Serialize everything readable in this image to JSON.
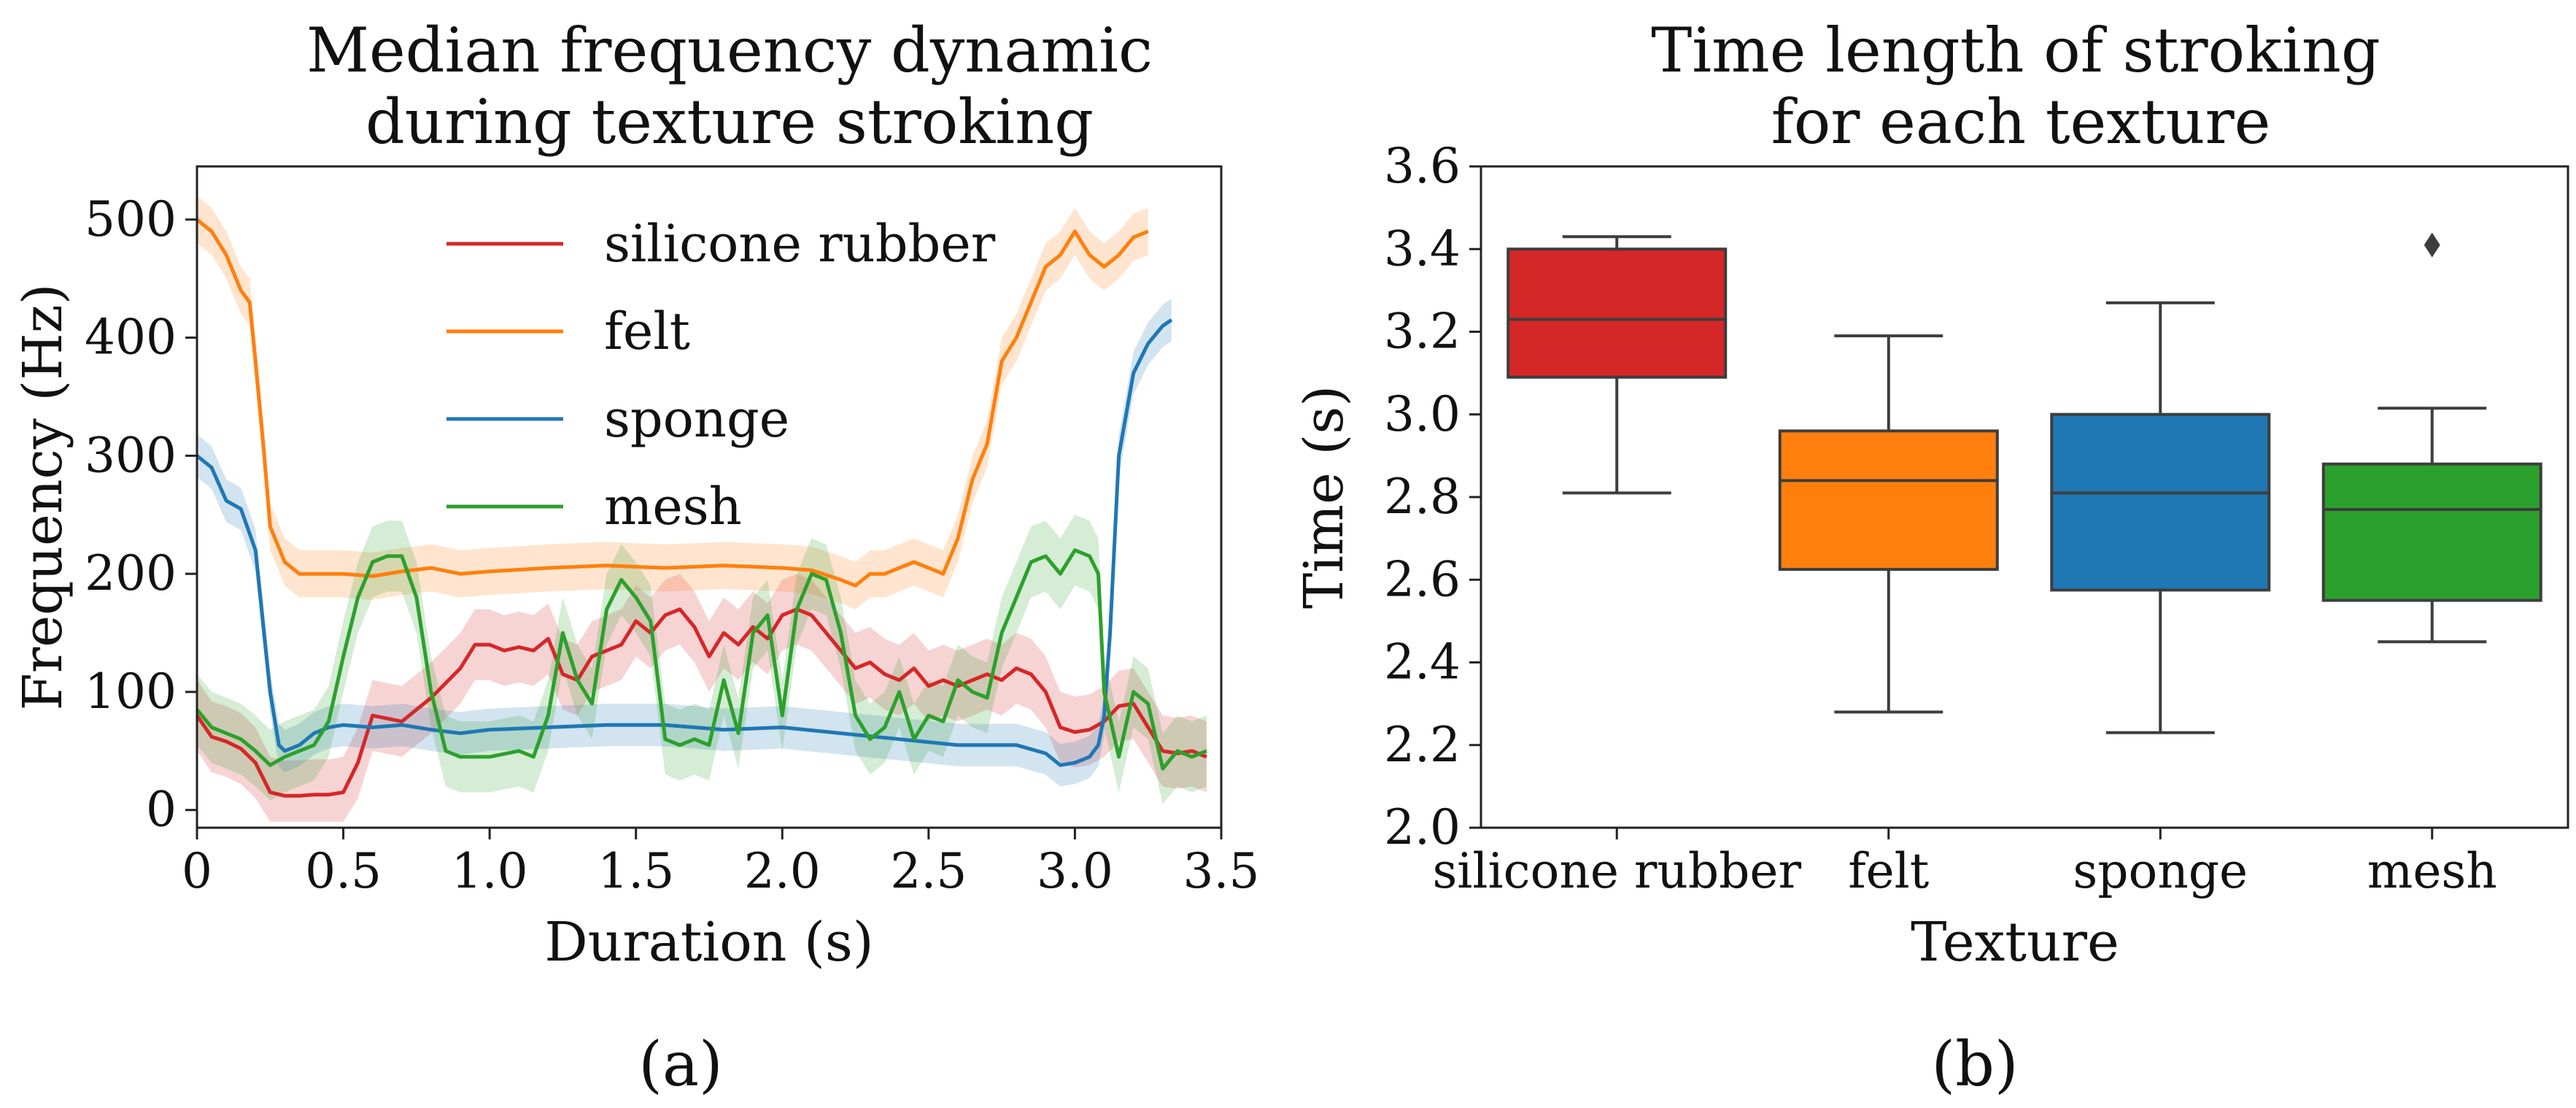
{
  "chart_data": [
    {
      "type": "line",
      "title_lines": [
        "Median frequency dynamic",
        "during texture stroking"
      ],
      "xlabel": "Duration (s)",
      "ylabel": "Frequency (Hz)",
      "xlim": [
        0,
        3.5
      ],
      "ylim": [
        -15,
        545
      ],
      "xticks": [
        "0",
        "0.5",
        "1.0",
        "1.5",
        "2.0",
        "2.5",
        "3.0",
        "3.5"
      ],
      "yticks": [
        "0",
        "100",
        "200",
        "300",
        "400",
        "500"
      ],
      "legend_position": "top-center",
      "caption": "(a)",
      "series": [
        {
          "name": "silicone rubber",
          "color": "#d62728",
          "band_spread": 30,
          "points": [
            [
              0,
              80
            ],
            [
              0.05,
              62
            ],
            [
              0.1,
              58
            ],
            [
              0.15,
              52
            ],
            [
              0.2,
              40
            ],
            [
              0.25,
              15
            ],
            [
              0.3,
              12
            ],
            [
              0.35,
              12
            ],
            [
              0.4,
              13
            ],
            [
              0.45,
              13
            ],
            [
              0.5,
              15
            ],
            [
              0.55,
              40
            ],
            [
              0.6,
              80
            ],
            [
              0.7,
              75
            ],
            [
              0.8,
              95
            ],
            [
              0.9,
              120
            ],
            [
              0.95,
              140
            ],
            [
              1.0,
              140
            ],
            [
              1.05,
              135
            ],
            [
              1.1,
              138
            ],
            [
              1.15,
              135
            ],
            [
              1.2,
              145
            ],
            [
              1.25,
              115
            ],
            [
              1.3,
              110
            ],
            [
              1.35,
              130
            ],
            [
              1.4,
              135
            ],
            [
              1.45,
              140
            ],
            [
              1.5,
              160
            ],
            [
              1.55,
              150
            ],
            [
              1.6,
              165
            ],
            [
              1.65,
              170
            ],
            [
              1.7,
              155
            ],
            [
              1.75,
              130
            ],
            [
              1.8,
              150
            ],
            [
              1.85,
              140
            ],
            [
              1.9,
              155
            ],
            [
              1.95,
              145
            ],
            [
              2.0,
              165
            ],
            [
              2.05,
              170
            ],
            [
              2.1,
              165
            ],
            [
              2.15,
              150
            ],
            [
              2.2,
              135
            ],
            [
              2.25,
              120
            ],
            [
              2.3,
              125
            ],
            [
              2.35,
              115
            ],
            [
              2.4,
              110
            ],
            [
              2.45,
              120
            ],
            [
              2.5,
              105
            ],
            [
              2.55,
              110
            ],
            [
              2.6,
              105
            ],
            [
              2.65,
              110
            ],
            [
              2.7,
              115
            ],
            [
              2.75,
              110
            ],
            [
              2.8,
              120
            ],
            [
              2.85,
              115
            ],
            [
              2.9,
              100
            ],
            [
              2.95,
              70
            ],
            [
              3.0,
              66
            ],
            [
              3.05,
              68
            ],
            [
              3.1,
              75
            ],
            [
              3.15,
              88
            ],
            [
              3.2,
              90
            ],
            [
              3.25,
              70
            ],
            [
              3.3,
              50
            ],
            [
              3.35,
              48
            ],
            [
              3.4,
              50
            ],
            [
              3.45,
              45
            ]
          ]
        },
        {
          "name": "felt",
          "color": "#ff7f0e",
          "band_spread": 20,
          "points": [
            [
              0,
              500
            ],
            [
              0.05,
              490
            ],
            [
              0.1,
              470
            ],
            [
              0.15,
              440
            ],
            [
              0.18,
              430
            ],
            [
              0.2,
              380
            ],
            [
              0.23,
              300
            ],
            [
              0.25,
              240
            ],
            [
              0.3,
              210
            ],
            [
              0.35,
              200
            ],
            [
              0.4,
              200
            ],
            [
              0.5,
              200
            ],
            [
              0.6,
              198
            ],
            [
              0.7,
              202
            ],
            [
              0.8,
              205
            ],
            [
              0.9,
              200
            ],
            [
              1.0,
              202
            ],
            [
              1.2,
              205
            ],
            [
              1.4,
              207
            ],
            [
              1.6,
              205
            ],
            [
              1.8,
              207
            ],
            [
              2.0,
              205
            ],
            [
              2.1,
              203
            ],
            [
              2.2,
              195
            ],
            [
              2.25,
              190
            ],
            [
              2.3,
              200
            ],
            [
              2.35,
              200
            ],
            [
              2.4,
              205
            ],
            [
              2.45,
              210
            ],
            [
              2.5,
              205
            ],
            [
              2.55,
              200
            ],
            [
              2.6,
              230
            ],
            [
              2.65,
              280
            ],
            [
              2.7,
              310
            ],
            [
              2.75,
              380
            ],
            [
              2.8,
              400
            ],
            [
              2.85,
              430
            ],
            [
              2.9,
              460
            ],
            [
              2.95,
              470
            ],
            [
              3.0,
              490
            ],
            [
              3.05,
              470
            ],
            [
              3.1,
              460
            ],
            [
              3.15,
              470
            ],
            [
              3.2,
              485
            ],
            [
              3.25,
              490
            ]
          ]
        },
        {
          "name": "sponge",
          "color": "#1f77b4",
          "band_spread": 18,
          "points": [
            [
              0,
              300
            ],
            [
              0.05,
              290
            ],
            [
              0.1,
              262
            ],
            [
              0.15,
              255
            ],
            [
              0.2,
              220
            ],
            [
              0.25,
              100
            ],
            [
              0.28,
              55
            ],
            [
              0.3,
              50
            ],
            [
              0.35,
              55
            ],
            [
              0.4,
              65
            ],
            [
              0.45,
              70
            ],
            [
              0.5,
              72
            ],
            [
              0.6,
              70
            ],
            [
              0.7,
              72
            ],
            [
              0.8,
              68
            ],
            [
              0.9,
              65
            ],
            [
              1.0,
              68
            ],
            [
              1.2,
              70
            ],
            [
              1.4,
              72
            ],
            [
              1.6,
              72
            ],
            [
              1.8,
              68
            ],
            [
              2.0,
              70
            ],
            [
              2.2,
              65
            ],
            [
              2.4,
              60
            ],
            [
              2.6,
              55
            ],
            [
              2.8,
              55
            ],
            [
              2.9,
              48
            ],
            [
              2.95,
              38
            ],
            [
              3.0,
              40
            ],
            [
              3.05,
              45
            ],
            [
              3.08,
              55
            ],
            [
              3.1,
              80
            ],
            [
              3.12,
              150
            ],
            [
              3.15,
              300
            ],
            [
              3.2,
              370
            ],
            [
              3.25,
              395
            ],
            [
              3.3,
              410
            ],
            [
              3.33,
              415
            ]
          ]
        },
        {
          "name": "mesh",
          "color": "#2ca02c",
          "band_spread": 30,
          "points": [
            [
              0,
              85
            ],
            [
              0.05,
              70
            ],
            [
              0.1,
              65
            ],
            [
              0.15,
              60
            ],
            [
              0.2,
              50
            ],
            [
              0.25,
              38
            ],
            [
              0.3,
              45
            ],
            [
              0.35,
              50
            ],
            [
              0.4,
              55
            ],
            [
              0.45,
              75
            ],
            [
              0.5,
              130
            ],
            [
              0.55,
              180
            ],
            [
              0.6,
              210
            ],
            [
              0.65,
              215
            ],
            [
              0.7,
              215
            ],
            [
              0.75,
              180
            ],
            [
              0.8,
              100
            ],
            [
              0.85,
              50
            ],
            [
              0.9,
              45
            ],
            [
              1.0,
              45
            ],
            [
              1.1,
              50
            ],
            [
              1.15,
              45
            ],
            [
              1.2,
              80
            ],
            [
              1.25,
              150
            ],
            [
              1.3,
              110
            ],
            [
              1.35,
              90
            ],
            [
              1.4,
              170
            ],
            [
              1.45,
              195
            ],
            [
              1.5,
              180
            ],
            [
              1.55,
              160
            ],
            [
              1.6,
              60
            ],
            [
              1.65,
              55
            ],
            [
              1.7,
              60
            ],
            [
              1.75,
              55
            ],
            [
              1.8,
              110
            ],
            [
              1.85,
              65
            ],
            [
              1.9,
              150
            ],
            [
              1.95,
              165
            ],
            [
              2.0,
              80
            ],
            [
              2.05,
              170
            ],
            [
              2.1,
              200
            ],
            [
              2.15,
              195
            ],
            [
              2.2,
              150
            ],
            [
              2.25,
              80
            ],
            [
              2.3,
              60
            ],
            [
              2.35,
              70
            ],
            [
              2.4,
              100
            ],
            [
              2.45,
              60
            ],
            [
              2.5,
              80
            ],
            [
              2.55,
              75
            ],
            [
              2.6,
              110
            ],
            [
              2.65,
              100
            ],
            [
              2.7,
              95
            ],
            [
              2.75,
              150
            ],
            [
              2.8,
              180
            ],
            [
              2.85,
              210
            ],
            [
              2.9,
              215
            ],
            [
              2.95,
              200
            ],
            [
              3.0,
              220
            ],
            [
              3.05,
              215
            ],
            [
              3.08,
              200
            ],
            [
              3.1,
              100
            ],
            [
              3.15,
              45
            ],
            [
              3.2,
              100
            ],
            [
              3.25,
              90
            ],
            [
              3.3,
              35
            ],
            [
              3.35,
              50
            ],
            [
              3.4,
              45
            ],
            [
              3.45,
              50
            ]
          ]
        }
      ]
    },
    {
      "type": "box",
      "title_lines": [
        "Time length of stroking",
        "for each texture"
      ],
      "xlabel": "Texture",
      "ylabel": "Time (s)",
      "ylim": [
        2.0,
        3.6
      ],
      "yticks": [
        "2.0",
        "2.2",
        "2.4",
        "2.6",
        "2.8",
        "3.0",
        "3.2",
        "3.4",
        "3.6"
      ],
      "caption": "(b)",
      "categories": [
        "silicone rubber",
        "felt",
        "sponge",
        "mesh"
      ],
      "boxes": [
        {
          "category": "silicone rubber",
          "color": "#d62728",
          "whisker_low": 2.81,
          "q1": 3.09,
          "median": 3.23,
          "q3": 3.4,
          "whisker_high": 3.43,
          "outliers": []
        },
        {
          "category": "felt",
          "color": "#ff7f0e",
          "whisker_low": 2.28,
          "q1": 2.625,
          "median": 2.84,
          "q3": 2.96,
          "whisker_high": 3.19,
          "outliers": []
        },
        {
          "category": "sponge",
          "color": "#1f77b4",
          "whisker_low": 2.23,
          "q1": 2.575,
          "median": 2.81,
          "q3": 3.0,
          "whisker_high": 3.27,
          "outliers": []
        },
        {
          "category": "mesh",
          "color": "#2ca02c",
          "whisker_low": 2.45,
          "q1": 2.55,
          "median": 2.77,
          "q3": 2.88,
          "whisker_high": 3.015,
          "outliers": [
            3.41
          ]
        }
      ]
    }
  ]
}
